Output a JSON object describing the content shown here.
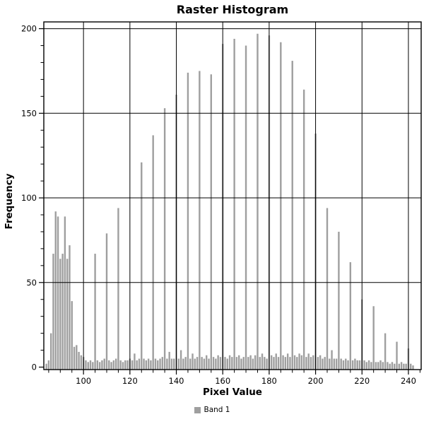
{
  "page": {
    "background": "#ffffff"
  },
  "chart_data": {
    "type": "bar",
    "title": "Raster Histogram",
    "xlabel": "Pixel Value",
    "ylabel": "Frequency",
    "legend": {
      "label": "Band 1",
      "color": "#9f9f9f",
      "position": "bottom-center"
    },
    "bar_color": "#9f9f9f",
    "axis_color": "#000000",
    "grid": true,
    "xlim": [
      82.9,
      245.5
    ],
    "ylim": [
      0,
      204
    ],
    "x_major_ticks": [
      100,
      120,
      140,
      160,
      180,
      200,
      220,
      240
    ],
    "x_minor_step": 5,
    "y_major_ticks": [
      0,
      50,
      100,
      150,
      200
    ],
    "y_minor_step": 10,
    "series_name": "Band 1",
    "values": [
      [
        84,
        2
      ],
      [
        85,
        4
      ],
      [
        86,
        20
      ],
      [
        87,
        67
      ],
      [
        88,
        92
      ],
      [
        89,
        89
      ],
      [
        90,
        64
      ],
      [
        91,
        67
      ],
      [
        92,
        89
      ],
      [
        93,
        64
      ],
      [
        94,
        72
      ],
      [
        95,
        39
      ],
      [
        96,
        12
      ],
      [
        97,
        13
      ],
      [
        98,
        9
      ],
      [
        99,
        7
      ],
      [
        100,
        6
      ],
      [
        101,
        4
      ],
      [
        102,
        3
      ],
      [
        103,
        4
      ],
      [
        104,
        3
      ],
      [
        105,
        67
      ],
      [
        106,
        4
      ],
      [
        107,
        3
      ],
      [
        108,
        4
      ],
      [
        109,
        5
      ],
      [
        110,
        79
      ],
      [
        111,
        4
      ],
      [
        112,
        3
      ],
      [
        113,
        4
      ],
      [
        114,
        5
      ],
      [
        115,
        94
      ],
      [
        116,
        4
      ],
      [
        117,
        3
      ],
      [
        118,
        4
      ],
      [
        119,
        4
      ],
      [
        120,
        5
      ],
      [
        121,
        4
      ],
      [
        122,
        8
      ],
      [
        123,
        4
      ],
      [
        124,
        5
      ],
      [
        125,
        121
      ],
      [
        126,
        5
      ],
      [
        127,
        4
      ],
      [
        128,
        5
      ],
      [
        129,
        4
      ],
      [
        130,
        137
      ],
      [
        131,
        5
      ],
      [
        132,
        4
      ],
      [
        133,
        5
      ],
      [
        134,
        6
      ],
      [
        135,
        153
      ],
      [
        136,
        5
      ],
      [
        137,
        9
      ],
      [
        138,
        5
      ],
      [
        139,
        5
      ],
      [
        140,
        161
      ],
      [
        141,
        5
      ],
      [
        142,
        10
      ],
      [
        143,
        5
      ],
      [
        144,
        6
      ],
      [
        145,
        174
      ],
      [
        146,
        5
      ],
      [
        147,
        8
      ],
      [
        148,
        5
      ],
      [
        149,
        6
      ],
      [
        150,
        175
      ],
      [
        151,
        6
      ],
      [
        152,
        5
      ],
      [
        153,
        7
      ],
      [
        154,
        5
      ],
      [
        155,
        173
      ],
      [
        156,
        6
      ],
      [
        157,
        5
      ],
      [
        158,
        7
      ],
      [
        159,
        6
      ],
      [
        160,
        191
      ],
      [
        161,
        6
      ],
      [
        162,
        5
      ],
      [
        163,
        7
      ],
      [
        164,
        6
      ],
      [
        165,
        194
      ],
      [
        166,
        6
      ],
      [
        167,
        7
      ],
      [
        168,
        5
      ],
      [
        169,
        6
      ],
      [
        170,
        190
      ],
      [
        171,
        6
      ],
      [
        172,
        7
      ],
      [
        173,
        5
      ],
      [
        174,
        7
      ],
      [
        175,
        197
      ],
      [
        176,
        6
      ],
      [
        177,
        8
      ],
      [
        178,
        6
      ],
      [
        179,
        5
      ],
      [
        180,
        196
      ],
      [
        181,
        7
      ],
      [
        182,
        6
      ],
      [
        183,
        8
      ],
      [
        184,
        6
      ],
      [
        185,
        192
      ],
      [
        186,
        7
      ],
      [
        187,
        6
      ],
      [
        188,
        8
      ],
      [
        189,
        6
      ],
      [
        190,
        181
      ],
      [
        191,
        7
      ],
      [
        192,
        6
      ],
      [
        193,
        8
      ],
      [
        194,
        7
      ],
      [
        195,
        164
      ],
      [
        196,
        6
      ],
      [
        197,
        8
      ],
      [
        198,
        6
      ],
      [
        199,
        7
      ],
      [
        200,
        138
      ],
      [
        201,
        6
      ],
      [
        202,
        7
      ],
      [
        203,
        5
      ],
      [
        204,
        6
      ],
      [
        205,
        94
      ],
      [
        206,
        5
      ],
      [
        207,
        10
      ],
      [
        208,
        5
      ],
      [
        209,
        5
      ],
      [
        210,
        80
      ],
      [
        211,
        5
      ],
      [
        212,
        4
      ],
      [
        213,
        5
      ],
      [
        214,
        4
      ],
      [
        215,
        62
      ],
      [
        216,
        4
      ],
      [
        217,
        5
      ],
      [
        218,
        4
      ],
      [
        219,
        4
      ],
      [
        220,
        40
      ],
      [
        221,
        4
      ],
      [
        222,
        3
      ],
      [
        223,
        4
      ],
      [
        224,
        3
      ],
      [
        225,
        36
      ],
      [
        226,
        3
      ],
      [
        227,
        3
      ],
      [
        228,
        4
      ],
      [
        229,
        3
      ],
      [
        230,
        20
      ],
      [
        231,
        3
      ],
      [
        232,
        2
      ],
      [
        233,
        3
      ],
      [
        234,
        2
      ],
      [
        235,
        15
      ],
      [
        236,
        2
      ],
      [
        237,
        3
      ],
      [
        238,
        2
      ],
      [
        239,
        2
      ],
      [
        240,
        11
      ],
      [
        241,
        2
      ],
      [
        242,
        1
      ]
    ]
  }
}
